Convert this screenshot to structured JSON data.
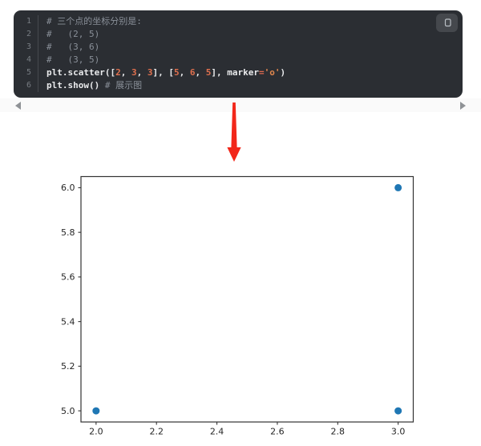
{
  "code_block": {
    "lines": [
      {
        "num": "1",
        "segments": [
          {
            "type": "comment",
            "text": "# 三个点的坐标分别是:"
          }
        ]
      },
      {
        "num": "2",
        "segments": [
          {
            "type": "comment",
            "text": "#   (2, 5)"
          }
        ]
      },
      {
        "num": "3",
        "segments": [
          {
            "type": "comment",
            "text": "#   (3, 6)"
          }
        ]
      },
      {
        "num": "4",
        "segments": [
          {
            "type": "comment",
            "text": "#   (3, 5)"
          }
        ]
      },
      {
        "num": "5",
        "segments": [
          {
            "type": "code",
            "text": "plt.scatter(["
          },
          {
            "type": "number",
            "text": "2"
          },
          {
            "type": "code",
            "text": ", "
          },
          {
            "type": "number",
            "text": "3"
          },
          {
            "type": "code",
            "text": ", "
          },
          {
            "type": "number",
            "text": "3"
          },
          {
            "type": "code",
            "text": "], ["
          },
          {
            "type": "number",
            "text": "5"
          },
          {
            "type": "code",
            "text": ", "
          },
          {
            "type": "number",
            "text": "6"
          },
          {
            "type": "code",
            "text": ", "
          },
          {
            "type": "number",
            "text": "5"
          },
          {
            "type": "code",
            "text": "], marker"
          },
          {
            "type": "operator",
            "text": "="
          },
          {
            "type": "string",
            "text": "'o'"
          },
          {
            "type": "code",
            "text": ")"
          }
        ]
      },
      {
        "num": "6",
        "segments": [
          {
            "type": "code",
            "text": "plt.show() "
          },
          {
            "type": "comment",
            "text": "# 展示图"
          }
        ]
      }
    ],
    "copy_icon": "copy-icon"
  },
  "scroll_strip": {
    "left_icon": "scroll-left-arrow",
    "right_icon": "scroll-right-arrow"
  },
  "annotation_arrow": {
    "icon": "down-arrow",
    "color": "#f2271a"
  },
  "colors": {
    "code_bg": "#2b2e33",
    "code_text": "#e9eaec",
    "comment": "#8a9099",
    "number": "#e0704e",
    "operator": "#dd6a4f",
    "string": "#e0874e",
    "line_number": "#787d83",
    "separator": "#46494e",
    "point_blue": "#1f77b4",
    "axis": "#333333",
    "tick_label": "#262626"
  },
  "chart_data": {
    "type": "scatter",
    "title": "",
    "xlabel": "",
    "ylabel": "",
    "x": [
      2,
      3,
      3
    ],
    "y": [
      5,
      6,
      5
    ],
    "marker": "o",
    "xlim": [
      1.95,
      3.05
    ],
    "ylim": [
      4.95,
      6.05
    ],
    "xticks": [
      2.0,
      2.2,
      2.4,
      2.6,
      2.8,
      3.0
    ],
    "yticks": [
      5.0,
      5.2,
      5.4,
      5.6,
      5.8,
      6.0
    ],
    "xtick_labels": [
      "2.0",
      "2.2",
      "2.4",
      "2.6",
      "2.8",
      "3.0"
    ],
    "ytick_labels": [
      "5.0",
      "5.2",
      "5.4",
      "5.6",
      "5.8",
      "6.0"
    ],
    "grid": false,
    "legend": null
  }
}
